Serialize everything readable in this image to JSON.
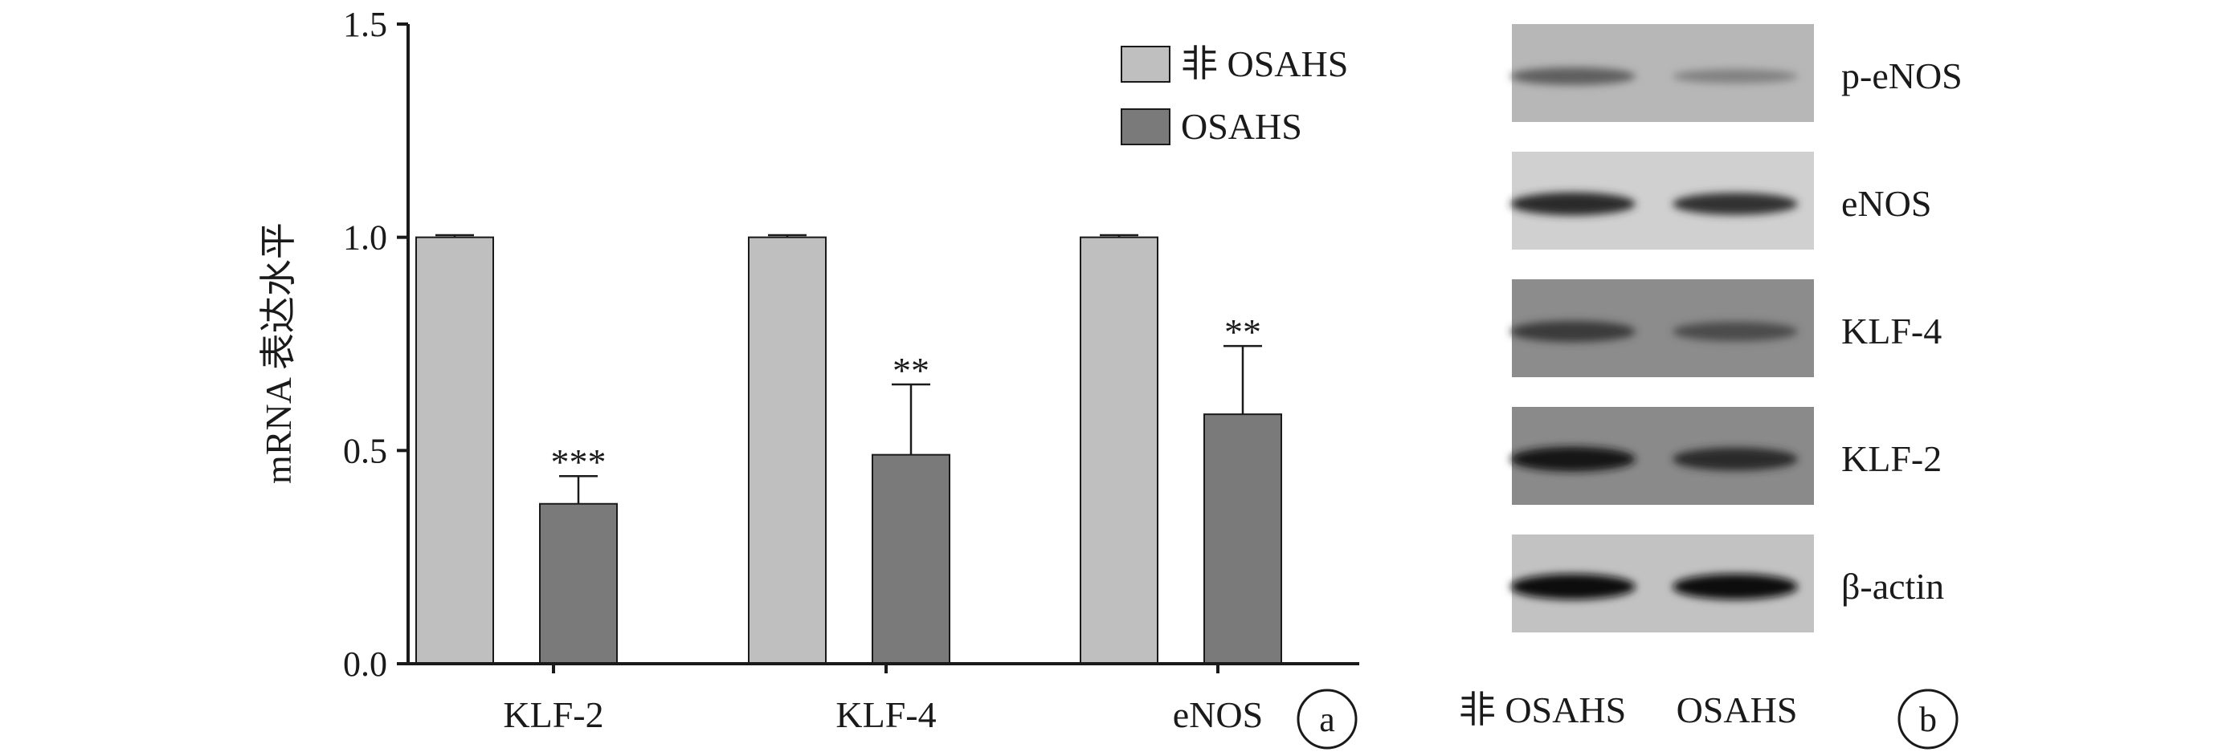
{
  "chart_data": {
    "type": "bar",
    "ylabel": "mRNA 表达水平",
    "ylim": [
      0,
      1.5
    ],
    "yticks": [
      "0.0",
      "0.5",
      "1.0",
      "1.5"
    ],
    "categories": [
      "KLF-2",
      "KLF-4",
      "eNOS"
    ],
    "series": [
      {
        "name": "非 OSAHS",
        "color": "#bfbfbf",
        "values": [
          1.0,
          1.0,
          1.0
        ],
        "errors": [
          0.005,
          0.005,
          0.005
        ],
        "significance": [
          "",
          "",
          ""
        ]
      },
      {
        "name": "OSAHS",
        "color": "#7a7a7a",
        "values": [
          0.375,
          0.49,
          0.585
        ],
        "errors": [
          0.065,
          0.165,
          0.16
        ],
        "significance": [
          "***",
          "**",
          "**"
        ]
      }
    ],
    "legend_position": "top-right",
    "panel_label": "a"
  },
  "blot": {
    "panel_label": "b",
    "columns": [
      "非 OSAHS",
      "OSAHS"
    ],
    "rows": [
      {
        "label": "p-eNOS",
        "bg": "#b7b7b7",
        "band_intensity": [
          0.55,
          0.35
        ]
      },
      {
        "label": "eNOS",
        "bg": "#d0d0d0",
        "band_intensity": [
          0.85,
          0.8
        ]
      },
      {
        "label": "KLF-4",
        "bg": "#8c8c8c",
        "band_intensity": [
          0.75,
          0.65
        ]
      },
      {
        "label": "KLF-2",
        "bg": "#8a8a8a",
        "band_intensity": [
          0.95,
          0.85
        ]
      },
      {
        "label": "β-actin",
        "bg": "#c2c2c2",
        "band_intensity": [
          1.0,
          1.0
        ]
      }
    ]
  }
}
